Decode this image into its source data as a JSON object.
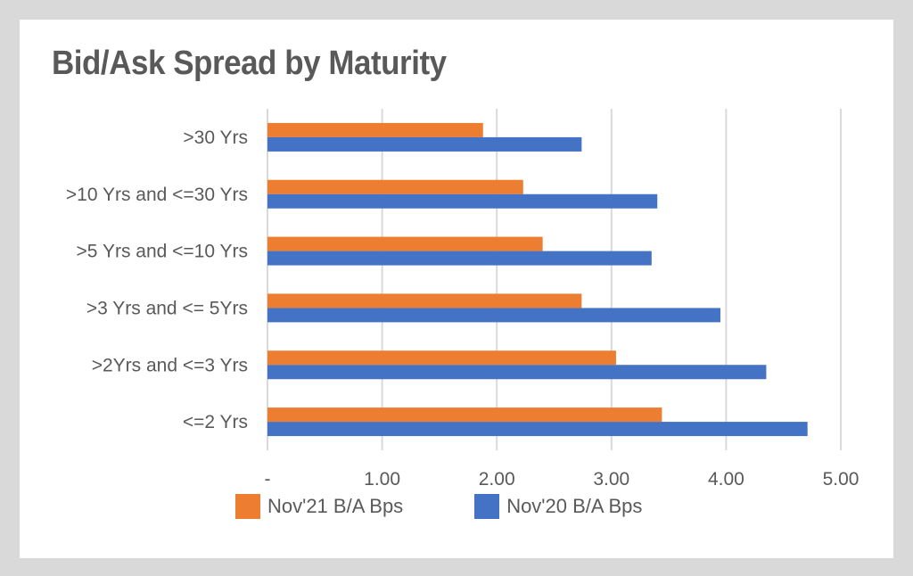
{
  "chart_data": {
    "type": "bar",
    "orientation": "horizontal",
    "title": "Bid/Ask Spread by Maturity",
    "categories": [
      ">30 Yrs",
      ">10 Yrs and <=30 Yrs",
      ">5 Yrs and <=10 Yrs",
      ">3 Yrs and <= 5Yrs",
      ">2Yrs and <=3 Yrs",
      "<=2 Yrs"
    ],
    "series": [
      {
        "name": "Nov'21 B/A Bps",
        "color": "#ed7d31",
        "values": [
          1.88,
          2.23,
          2.4,
          2.74,
          3.04,
          3.44
        ]
      },
      {
        "name": "Nov'20 B/A Bps",
        "color": "#4472c4",
        "values": [
          2.74,
          3.4,
          3.35,
          3.95,
          4.35,
          4.71
        ]
      }
    ],
    "xlim": [
      0,
      5
    ],
    "x_ticks": [
      0,
      1,
      2,
      3,
      4,
      5
    ],
    "x_tick_labels": [
      "-",
      "1.00",
      "2.00",
      "3.00",
      "4.00",
      "5.00"
    ],
    "xlabel": "",
    "ylabel": "",
    "grid": "vertical",
    "legend_position": "bottom"
  }
}
